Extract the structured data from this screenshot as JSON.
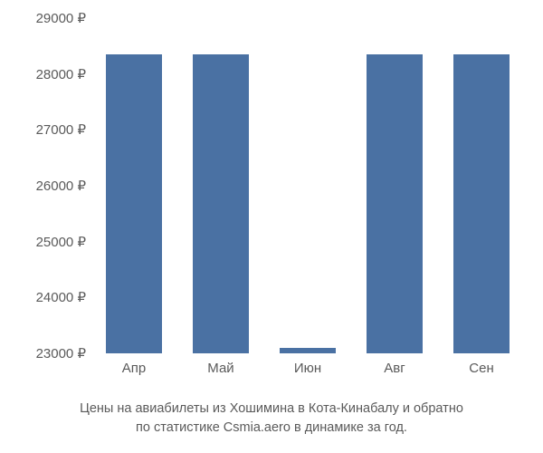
{
  "chart": {
    "type": "bar",
    "categories": [
      "Апр",
      "Май",
      "Июн",
      "Авг",
      "Сен"
    ],
    "values": [
      28350,
      28350,
      23100,
      28350,
      28350
    ],
    "bar_color": "#4a71a3",
    "background_color": "#ffffff",
    "text_color": "#5a5a5a",
    "ylim_min": 23000,
    "ylim_max": 29000,
    "ytick_step": 1000,
    "y_suffix": " ₽",
    "bar_width_ratio": 0.65,
    "label_fontsize": 15,
    "caption_fontsize": 14.5,
    "caption_line1": "Цены на авиабилеты из Хошимина в Кота-Кинабалу и обратно",
    "caption_line2": "по статистике Csmia.aero в динамике за год."
  }
}
